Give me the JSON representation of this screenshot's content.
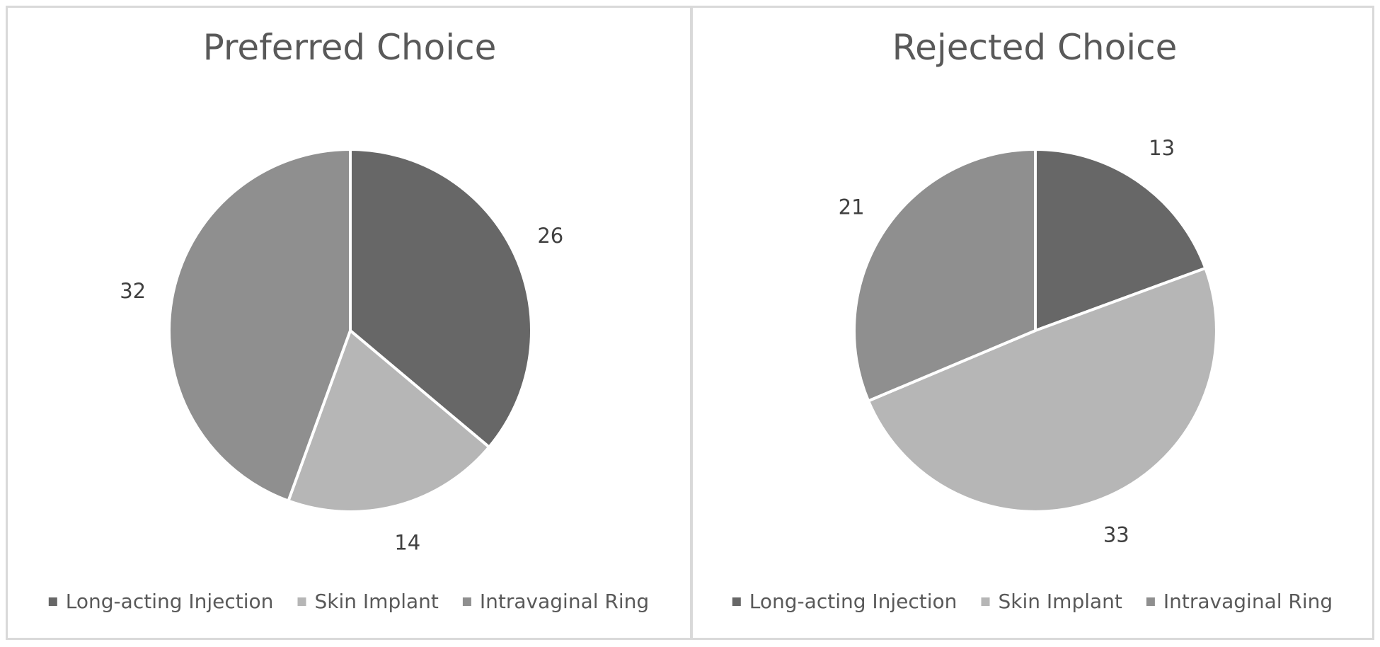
{
  "colors": {
    "long_acting_injection": "#676767",
    "skin_implant": "#b6b6b6",
    "intravaginal_ring": "#8f8f8f",
    "slice_border": "#ffffff"
  },
  "chart_data": [
    {
      "type": "pie",
      "title": "Preferred Choice",
      "categories": [
        "Long-acting Injection",
        "Skin Implant",
        "Intravaginal Ring"
      ],
      "values": [
        26,
        14,
        32
      ],
      "data_labels": [
        "26",
        "14",
        "32"
      ],
      "legend_position": "bottom",
      "start_angle": "top",
      "direction": "clockwise"
    },
    {
      "type": "pie",
      "title": "Rejected Choice",
      "categories": [
        "Long-acting Injection",
        "Skin Implant",
        "Intravaginal Ring"
      ],
      "values": [
        13,
        33,
        21
      ],
      "data_labels": [
        "13",
        "33",
        "21"
      ],
      "legend_position": "bottom",
      "start_angle": "top",
      "direction": "clockwise"
    }
  ]
}
